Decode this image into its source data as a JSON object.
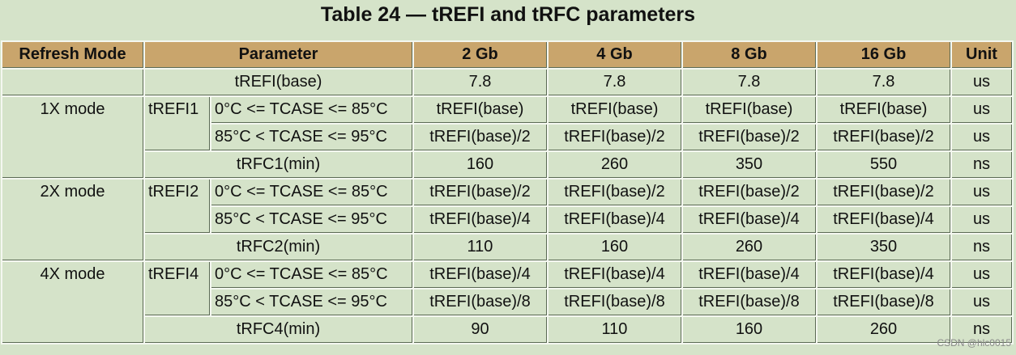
{
  "title": "Table 24 — tREFI and tRFC parameters",
  "table": {
    "header": [
      "Refresh Mode",
      "Parameter",
      "2 Gb",
      "4 Gb",
      "8 Gb",
      "16 Gb",
      "Unit"
    ],
    "base": {
      "param": "tREFI(base)",
      "values": [
        7.8,
        7.8,
        7.8,
        7.8
      ],
      "unit": "us"
    },
    "modes": [
      {
        "mode": "1X mode",
        "refi": "tREFI1",
        "conditions": [
          {
            "condition": "0°C <= TCASE <= 85°C",
            "values": [
              "tREFI(base)",
              "tREFI(base)",
              "tREFI(base)",
              "tREFI(base)"
            ],
            "unit": "us"
          },
          {
            "condition": "85°C < TCASE <= 95°C",
            "values": [
              "tREFI(base)/2",
              "tREFI(base)/2",
              "tREFI(base)/2",
              "tREFI(base)/2"
            ],
            "unit": "us"
          }
        ],
        "trfc": {
          "param": "tRFC1(min)",
          "values": [
            160,
            260,
            350,
            550
          ],
          "unit": "ns"
        }
      },
      {
        "mode": "2X mode",
        "refi": "tREFI2",
        "conditions": [
          {
            "condition": "0°C <= TCASE <= 85°C",
            "values": [
              "tREFI(base)/2",
              "tREFI(base)/2",
              "tREFI(base)/2",
              "tREFI(base)/2"
            ],
            "unit": "us"
          },
          {
            "condition": "85°C < TCASE <= 95°C",
            "values": [
              "tREFI(base)/4",
              "tREFI(base)/4",
              "tREFI(base)/4",
              "tREFI(base)/4"
            ],
            "unit": "us"
          }
        ],
        "trfc": {
          "param": "tRFC2(min)",
          "values": [
            110,
            160,
            260,
            350
          ],
          "unit": "ns"
        }
      },
      {
        "mode": "4X mode",
        "refi": "tREFI4",
        "conditions": [
          {
            "condition": "0°C <= TCASE <= 85°C",
            "values": [
              "tREFI(base)/4",
              "tREFI(base)/4",
              "tREFI(base)/4",
              "tREFI(base)/4"
            ],
            "unit": "us"
          },
          {
            "condition": "85°C < TCASE <= 95°C",
            "values": [
              "tREFI(base)/8",
              "tREFI(base)/8",
              "tREFI(base)/8",
              "tREFI(base)/8"
            ],
            "unit": "us"
          }
        ],
        "trfc": {
          "param": "tRFC4(min)",
          "values": [
            90,
            110,
            160,
            260
          ],
          "unit": "ns"
        }
      }
    ]
  },
  "watermark": "CSDN @hlc0015"
}
